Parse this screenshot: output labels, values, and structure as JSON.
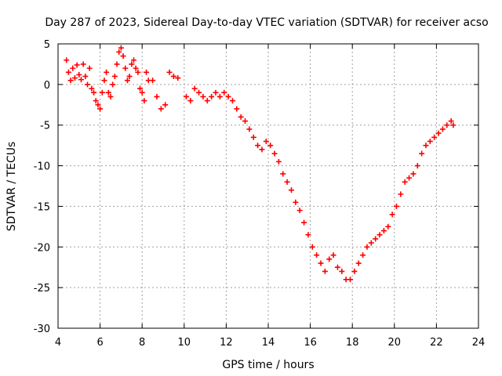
{
  "chart_data": {
    "type": "scatter",
    "title": "Day 287 of 2023, Sidereal Day-to-day VTEC variation (SDTVAR) for receiver acso",
    "xlabel": "GPS time / hours",
    "ylabel": "SDTVAR / TECUs",
    "xlim": [
      4,
      24
    ],
    "ylim": [
      -30,
      5
    ],
    "xticks": [
      4,
      6,
      8,
      10,
      12,
      14,
      16,
      18,
      20,
      22,
      24
    ],
    "yticks": [
      5,
      0,
      -5,
      -10,
      -15,
      -20,
      -25,
      -30
    ],
    "grid": true,
    "marker": "+",
    "color": "#ff0000",
    "series": [
      {
        "name": "SDTVAR",
        "x": [
          4.4,
          4.5,
          4.6,
          4.7,
          4.8,
          4.9,
          5.0,
          5.1,
          5.2,
          5.3,
          5.4,
          5.5,
          5.6,
          5.7,
          5.8,
          5.9,
          6.0,
          6.1,
          6.2,
          6.3,
          6.4,
          6.5,
          6.6,
          6.7,
          6.8,
          6.9,
          7.0,
          7.1,
          7.2,
          7.3,
          7.4,
          7.5,
          7.6,
          7.7,
          7.8,
          7.9,
          8.0,
          8.1,
          8.2,
          8.3,
          8.5,
          8.7,
          8.9,
          9.1,
          9.3,
          9.5,
          9.7,
          10.1,
          10.3,
          10.5,
          10.7,
          10.9,
          11.1,
          11.3,
          11.5,
          11.7,
          11.9,
          12.1,
          12.3,
          12.5,
          12.7,
          12.9,
          13.1,
          13.3,
          13.5,
          13.7,
          13.9,
          14.1,
          14.3,
          14.5,
          14.7,
          14.9,
          15.1,
          15.3,
          15.5,
          15.7,
          15.9,
          16.1,
          16.3,
          16.5,
          16.7,
          16.9,
          17.1,
          17.3,
          17.5,
          17.7,
          17.9,
          18.1,
          18.3,
          18.5,
          18.7,
          18.9,
          19.1,
          19.3,
          19.5,
          19.7,
          19.9,
          20.1,
          20.3,
          20.5,
          20.7,
          20.9,
          21.1,
          21.3,
          21.5,
          21.7,
          21.9,
          22.1,
          22.3,
          22.5,
          22.7,
          22.8
        ],
        "y": [
          3.0,
          1.5,
          0.5,
          2.0,
          0.8,
          2.4,
          1.2,
          0.6,
          2.5,
          1.0,
          0.0,
          2.0,
          -0.5,
          -1.0,
          -2.0,
          -2.5,
          -3.0,
          -1.0,
          0.5,
          1.5,
          -1.0,
          -1.5,
          0.0,
          1.0,
          2.5,
          4.0,
          4.5,
          3.5,
          2.0,
          0.5,
          1.0,
          2.5,
          3.0,
          2.0,
          1.5,
          -0.5,
          -1.0,
          -2.0,
          1.5,
          0.5,
          0.5,
          -1.5,
          -3.0,
          -2.5,
          1.5,
          1.0,
          0.8,
          -1.5,
          -2.0,
          -0.5,
          -1.0,
          -1.5,
          -2.0,
          -1.5,
          -1.0,
          -1.5,
          -1.0,
          -1.5,
          -2.0,
          -3.0,
          -4.0,
          -4.5,
          -5.5,
          -6.5,
          -7.5,
          -8.0,
          -7.0,
          -7.5,
          -8.5,
          -9.5,
          -11.0,
          -12.0,
          -13.0,
          -14.5,
          -15.5,
          -17.0,
          -18.5,
          -20.0,
          -21.0,
          -22.0,
          -23.0,
          -21.5,
          -21.0,
          -22.5,
          -23.0,
          -24.0,
          -24.0,
          -23.0,
          -22.0,
          -21.0,
          -20.0,
          -19.5,
          -19.0,
          -18.5,
          -18.0,
          -17.5,
          -16.0,
          -15.0,
          -13.5,
          -12.0,
          -11.5,
          -11.0,
          -10.0,
          -8.5,
          -7.5,
          -7.0,
          -6.5,
          -6.0,
          -5.5,
          -5.0,
          -4.5,
          -5.0
        ]
      }
    ]
  }
}
